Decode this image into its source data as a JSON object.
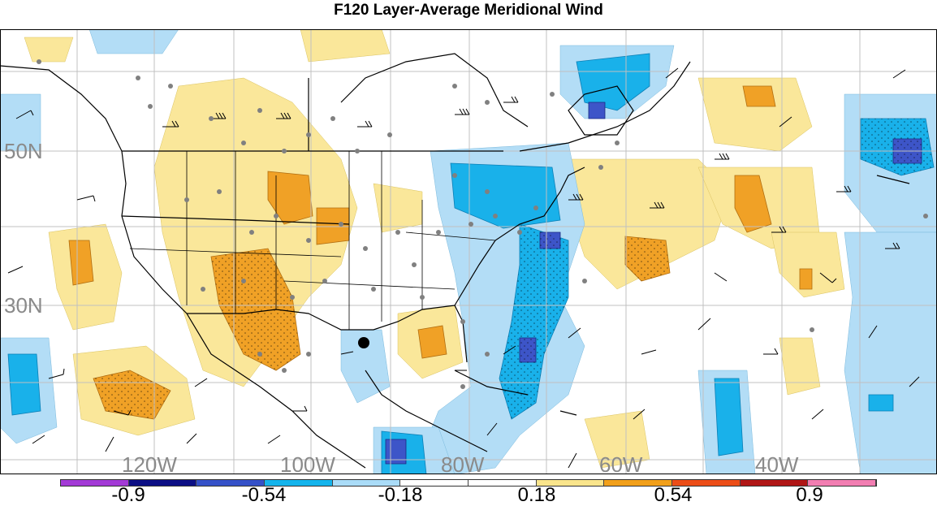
{
  "title": "F120 Layer-Average Meridional Wind",
  "lat_labels": [
    "50N",
    "30N"
  ],
  "lon_labels": [
    "120W",
    "100W",
    "80W",
    "60W",
    "40W"
  ],
  "colorbar": {
    "colors": [
      "#a33ad6",
      "#0c0f85",
      "#3551c8",
      "#14b4ec",
      "#aadcf8",
      "#ffffff",
      "#ffffff",
      "#fae58c",
      "#f2a01a",
      "#ec4d17",
      "#b01616",
      "#f27eb2"
    ],
    "labels": [
      "-0.9",
      "-0.54",
      "-0.18",
      "0.18",
      "0.54",
      "0.9"
    ]
  },
  "colors": {
    "light_blue": "#b3ddf6",
    "blue": "#19b1ea",
    "dark_blue": "#3d55c8",
    "light_yellow": "#fae79a",
    "orange": "#f0a126",
    "coast": "#000000",
    "grid": "#c0c0c0",
    "station_dot": "#808080"
  }
}
